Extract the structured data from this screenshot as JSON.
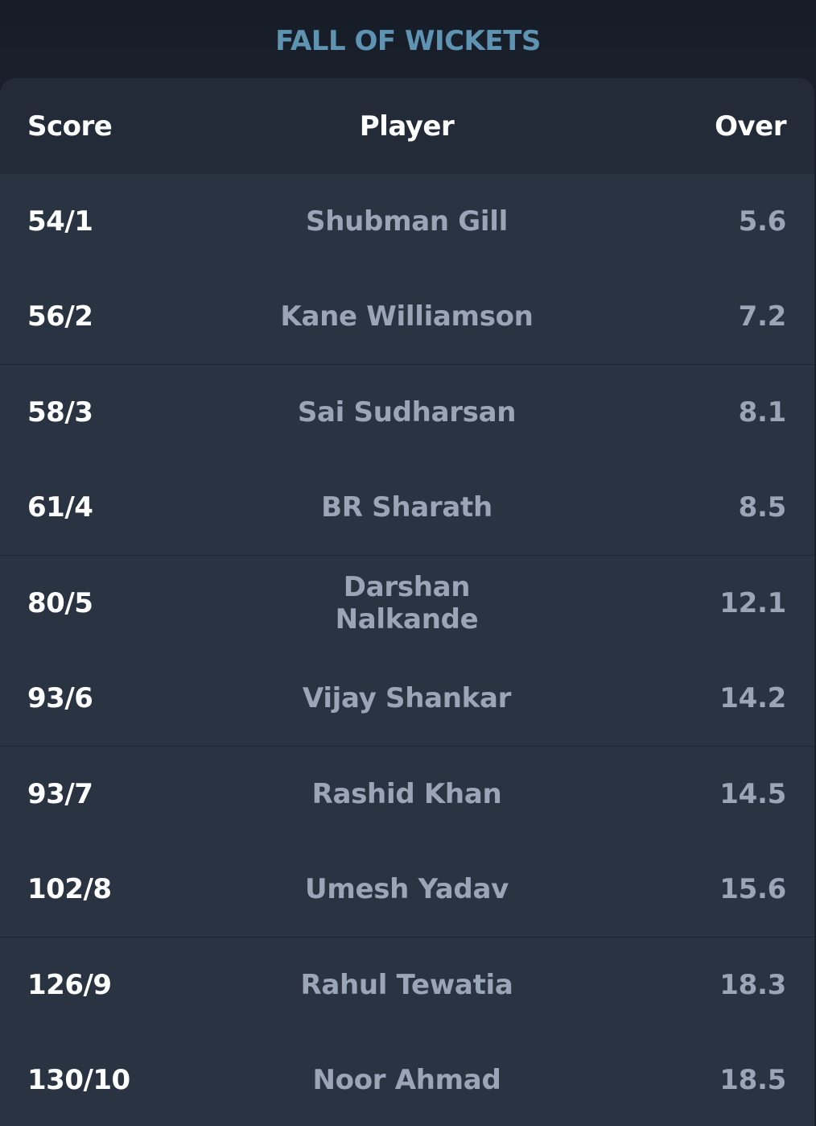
{
  "title": "FALL OF WICKETS",
  "columns": {
    "score": "Score",
    "player": "Player",
    "over": "Over"
  },
  "wickets": [
    {
      "score": "54/1",
      "player": "Shubman Gill",
      "over": "5.6"
    },
    {
      "score": "56/2",
      "player": "Kane Williamson",
      "over": "7.2"
    },
    {
      "score": "58/3",
      "player": "Sai Sudharsan",
      "over": "8.1"
    },
    {
      "score": "61/4",
      "player": "BR Sharath",
      "over": "8.5"
    },
    {
      "score": "80/5",
      "player": "Darshan Nalkande",
      "over": "12.1"
    },
    {
      "score": "93/6",
      "player": "Vijay Shankar",
      "over": "14.2"
    },
    {
      "score": "93/7",
      "player": "Rashid Khan",
      "over": "14.5"
    },
    {
      "score": "102/8",
      "player": "Umesh Yadav",
      "over": "15.6"
    },
    {
      "score": "126/9",
      "player": "Rahul Tewatia",
      "over": "18.3"
    },
    {
      "score": "130/10",
      "player": "Noor Ahmad",
      "over": "18.5"
    }
  ],
  "colors": {
    "background": "#19202c",
    "card": "#2a3341",
    "header": "#232b38",
    "title": "#5f93b2",
    "muted_text": "#9aa5b7",
    "primary_text": "#ffffff"
  }
}
